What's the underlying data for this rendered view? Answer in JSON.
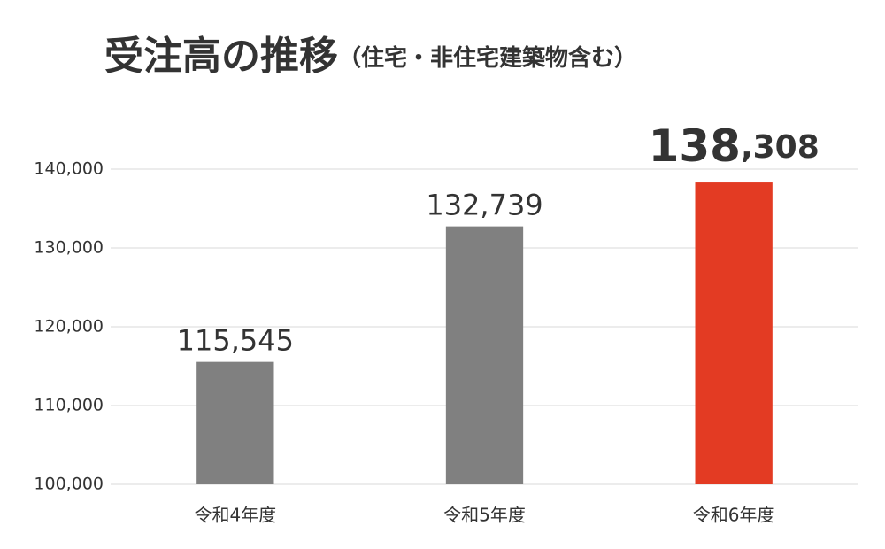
{
  "chart_data": {
    "type": "bar",
    "title": "受注高の推移",
    "subtitle": "（住宅・非住宅建築物含む）",
    "categories": [
      "令和4年度",
      "令和5年度",
      "令和6年度"
    ],
    "values": [
      115545,
      132739,
      138308
    ],
    "value_labels": [
      "115,545",
      "132,739",
      "138,308"
    ],
    "colors": [
      "#808080",
      "#808080",
      "#e33b23"
    ],
    "ylim": [
      100000,
      140000
    ],
    "yticks": [
      {
        "value": 100000,
        "label": "100,000"
      },
      {
        "value": 110000,
        "label": "110,000"
      },
      {
        "value": 120000,
        "label": "120,000"
      },
      {
        "value": 130000,
        "label": "130,000"
      },
      {
        "value": 140000,
        "label": "140,000"
      }
    ],
    "grid": true
  }
}
